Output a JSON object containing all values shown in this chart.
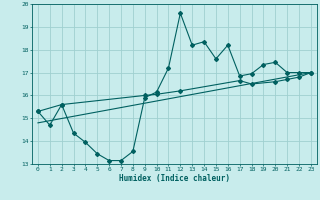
{
  "title": "",
  "xlabel": "Humidex (Indice chaleur)",
  "xlim": [
    -0.5,
    23.5
  ],
  "ylim": [
    13,
    20
  ],
  "yticks": [
    13,
    14,
    15,
    16,
    17,
    18,
    19,
    20
  ],
  "xticks": [
    0,
    1,
    2,
    3,
    4,
    5,
    6,
    7,
    8,
    9,
    10,
    11,
    12,
    13,
    14,
    15,
    16,
    17,
    18,
    19,
    20,
    21,
    22,
    23
  ],
  "bg_color": "#c8ecec",
  "line_color": "#006060",
  "grid_color": "#a0d0d0",
  "line1_x": [
    0,
    1,
    2,
    3,
    4,
    5,
    6,
    7,
    8,
    9,
    10,
    11,
    12,
    13,
    14,
    15,
    16,
    17,
    18,
    19,
    20,
    21,
    22,
    23
  ],
  "line1_y": [
    15.3,
    14.7,
    15.6,
    14.35,
    13.95,
    13.45,
    13.15,
    13.15,
    13.55,
    15.9,
    16.15,
    17.2,
    19.6,
    18.2,
    18.35,
    17.6,
    18.2,
    16.85,
    16.95,
    17.35,
    17.45,
    17.0,
    17.0,
    17.0
  ],
  "line2_x": [
    0,
    2,
    9,
    10,
    12,
    17,
    18,
    20,
    21,
    22,
    23
  ],
  "line2_y": [
    15.3,
    15.6,
    16.0,
    16.05,
    16.2,
    16.65,
    16.5,
    16.6,
    16.7,
    16.8,
    17.0
  ],
  "line3_x": [
    0,
    23
  ],
  "line3_y": [
    14.8,
    17.0
  ]
}
